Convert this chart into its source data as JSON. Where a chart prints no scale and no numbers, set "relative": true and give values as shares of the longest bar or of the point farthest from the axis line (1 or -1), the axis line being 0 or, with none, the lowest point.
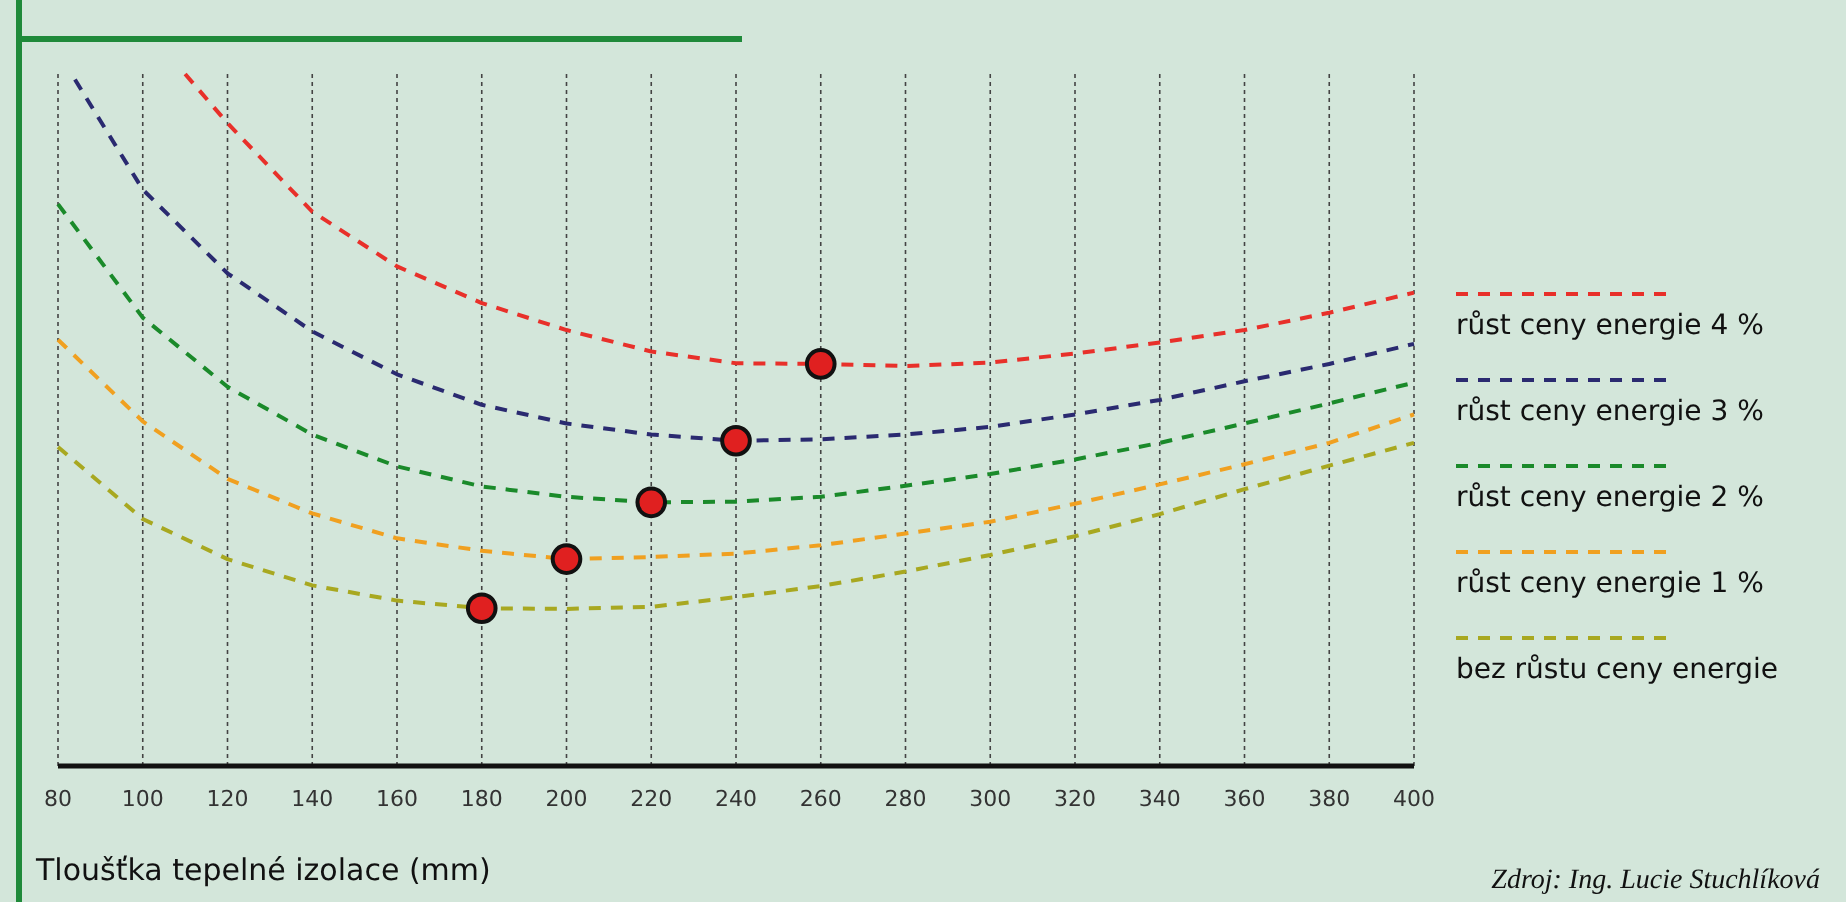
{
  "chart_data": {
    "type": "line",
    "relative": true,
    "xlabel": "Tloušťka tepelné izolace (mm)",
    "xlim": [
      80,
      400
    ],
    "xticks": [
      80,
      100,
      120,
      140,
      160,
      180,
      200,
      220,
      240,
      260,
      280,
      300,
      320,
      340,
      360,
      380,
      400
    ],
    "grid": "x",
    "legend": "right",
    "line_style": "dashed",
    "marker": "none",
    "annotations": [
      "Zdroj: Ing. Lucie Stuchlíková"
    ],
    "series": [
      {
        "name": "růst ceny energie 4 %",
        "color": "#e8302a",
        "x": [
          110,
          120,
          140,
          160,
          180,
          200,
          220,
          240,
          260,
          280,
          300,
          320,
          340,
          360,
          380,
          400
        ],
        "values": [
          1.0,
          0.929,
          0.801,
          0.722,
          0.669,
          0.63,
          0.599,
          0.582,
          0.581,
          0.578,
          0.583,
          0.596,
          0.612,
          0.63,
          0.655,
          0.684
        ]
      },
      {
        "name": "růst ceny energie 3 %",
        "color": "#2a2a70",
        "x": [
          84,
          100,
          120,
          140,
          160,
          180,
          200,
          220,
          240,
          260,
          280,
          300,
          320,
          340,
          360,
          380,
          400
        ],
        "values": [
          0.992,
          0.833,
          0.712,
          0.628,
          0.566,
          0.522,
          0.495,
          0.479,
          0.47,
          0.472,
          0.479,
          0.49,
          0.508,
          0.529,
          0.556,
          0.581,
          0.61
        ]
      },
      {
        "name": "růst ceny energie 2 %",
        "color": "#1a8a2a",
        "x": [
          80,
          100,
          120,
          140,
          160,
          180,
          200,
          220,
          240,
          260,
          280,
          300,
          320,
          340,
          360,
          380,
          400
        ],
        "values": [
          0.812,
          0.648,
          0.548,
          0.479,
          0.433,
          0.404,
          0.389,
          0.381,
          0.382,
          0.389,
          0.405,
          0.422,
          0.443,
          0.467,
          0.495,
          0.524,
          0.554
        ]
      },
      {
        "name": "růst ceny energie 1 %",
        "color": "#f0a020",
        "x": [
          80,
          100,
          120,
          140,
          160,
          180,
          200,
          220,
          240,
          260,
          280,
          300,
          320,
          340,
          360,
          380,
          400
        ],
        "values": [
          0.616,
          0.498,
          0.415,
          0.365,
          0.329,
          0.311,
          0.299,
          0.302,
          0.307,
          0.319,
          0.336,
          0.353,
          0.379,
          0.407,
          0.436,
          0.467,
          0.508
        ]
      },
      {
        "name": "bez růstu ceny energie",
        "color": "#a8a820",
        "x": [
          80,
          100,
          120,
          140,
          160,
          180,
          200,
          220,
          240,
          260,
          280,
          300,
          320,
          340,
          360,
          380,
          400
        ],
        "values": [
          0.461,
          0.357,
          0.299,
          0.261,
          0.239,
          0.228,
          0.227,
          0.23,
          0.244,
          0.26,
          0.281,
          0.305,
          0.332,
          0.364,
          0.4,
          0.434,
          0.467
        ]
      },
      {
        "type": "scatter",
        "marker": "circle",
        "color": "#e02020",
        "x": [
          180,
          200,
          220,
          240,
          260
        ],
        "values": [
          0.228,
          0.299,
          0.381,
          0.47,
          0.581
        ]
      }
    ]
  }
}
